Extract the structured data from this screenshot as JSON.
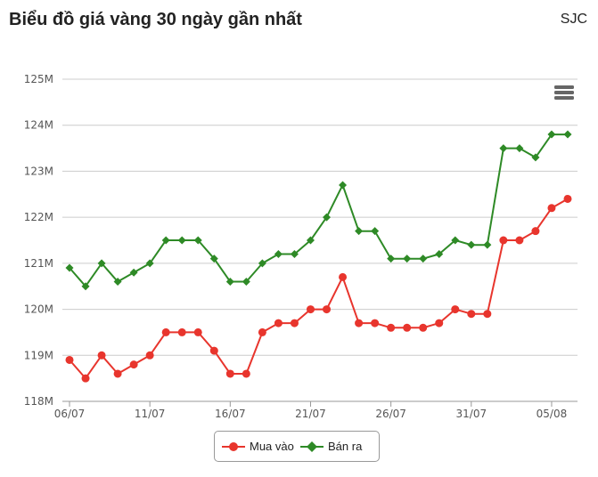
{
  "header": {
    "title": "Biểu đồ giá vàng 30 ngày gần nhất",
    "brand": "SJC"
  },
  "menu_icon": "hamburger-menu-icon",
  "chart_data": {
    "type": "line",
    "title": "Biểu đồ giá vàng 30 ngày gần nhất",
    "ylim": [
      118,
      125
    ],
    "y_unit": "M",
    "yticks": [
      "118M",
      "119M",
      "120M",
      "121M",
      "122M",
      "123M",
      "124M",
      "125M"
    ],
    "y_tick_values": [
      118,
      119,
      120,
      121,
      122,
      123,
      124,
      125
    ],
    "x": [
      "06/07",
      "07/07",
      "08/07",
      "09/07",
      "10/07",
      "11/07",
      "12/07",
      "13/07",
      "14/07",
      "15/07",
      "16/07",
      "17/07",
      "18/07",
      "19/07",
      "20/07",
      "21/07",
      "22/07",
      "23/07",
      "24/07",
      "25/07",
      "26/07",
      "27/07",
      "28/07",
      "29/07",
      "30/07",
      "31/07",
      "01/08",
      "02/08",
      "03/08",
      "04/08",
      "05/08",
      "06/08"
    ],
    "xtick_labels": [
      "06/07",
      "11/07",
      "16/07",
      "21/07",
      "26/07",
      "31/07",
      "05/08"
    ],
    "series": [
      {
        "name": "Mua vào",
        "color": "#e8352d",
        "marker": "circle",
        "values": [
          118.9,
          118.5,
          119.0,
          118.6,
          118.8,
          119.0,
          119.5,
          119.5,
          119.5,
          119.1,
          118.6,
          118.6,
          119.5,
          119.7,
          119.7,
          120.0,
          120.0,
          120.7,
          119.7,
          119.7,
          119.6,
          119.6,
          119.6,
          119.7,
          120.0,
          119.9,
          119.9,
          121.5,
          121.5,
          121.7,
          122.2,
          122.4
        ]
      },
      {
        "name": "Bán ra",
        "color": "#2e8a26",
        "marker": "diamond",
        "values": [
          120.9,
          120.5,
          121.0,
          120.6,
          120.8,
          121.0,
          121.5,
          121.5,
          121.5,
          121.1,
          120.6,
          120.6,
          121.0,
          121.2,
          121.2,
          121.5,
          122.0,
          122.7,
          121.7,
          121.7,
          121.1,
          121.1,
          121.1,
          121.2,
          121.5,
          121.4,
          121.4,
          123.5,
          123.5,
          123.3,
          123.8,
          123.8
        ]
      }
    ],
    "grid": true,
    "legend": "bottom-center"
  },
  "legend": {
    "items": [
      "Mua vào",
      "Bán ra"
    ]
  },
  "colors": {
    "grid": "#cccccc",
    "axis": "#999999",
    "text": "#555555"
  }
}
